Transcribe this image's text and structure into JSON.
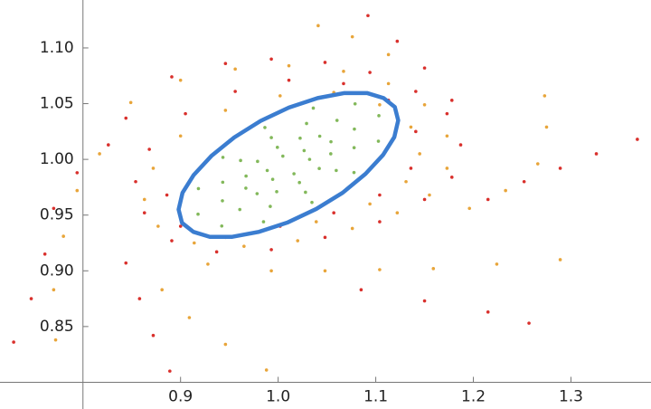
{
  "chart_data": {
    "type": "scatter",
    "xlim": [
      0.715,
      1.382
    ],
    "ylim": [
      0.776,
      1.143
    ],
    "axes_origin": [
      0.8,
      0.8
    ],
    "xticks": [
      {
        "value": 0.9,
        "label": "0.9"
      },
      {
        "value": 1.0,
        "label": "1.0"
      },
      {
        "value": 1.1,
        "label": "1.1"
      },
      {
        "value": 1.2,
        "label": "1.2"
      },
      {
        "value": 1.3,
        "label": "1.3"
      }
    ],
    "yticks": [
      {
        "value": 0.9,
        "label": "0.90"
      },
      0.85,
      0.95,
      {
        "value": 1.0,
        "label": "1.00"
      },
      1.05,
      {
        "value": 1.1,
        "label": "1.10"
      }
    ],
    "series": [
      {
        "color": "#82b85a",
        "style": "points",
        "x": [
          1.1027,
          1.1032,
          1.0788,
          1.036,
          0.9864,
          0.9434,
          0.9183,
          0.9179,
          0.9422,
          0.985,
          1.0346,
          1.0777,
          1.0778,
          1.0781,
          1.0603,
          1.0291,
          0.993,
          0.9615,
          0.9432,
          0.9429,
          0.9607,
          0.9919,
          1.028,
          1.0595,
          1.0539,
          1.0541,
          1.0426,
          1.0225,
          0.9992,
          0.9789,
          0.9671,
          0.9669,
          0.9784,
          0.9985,
          1.0218,
          1.0421,
          1.0322,
          1.0266,
          1.0048,
          0.9888,
          0.9944,
          1.0162
        ],
        "y": [
          1.0163,
          1.0392,
          1.0498,
          1.046,
          1.0286,
          1.0018,
          0.9738,
          0.9508,
          0.9402,
          0.944,
          0.9614,
          0.9882,
          1.0105,
          1.0272,
          1.035,
          1.0322,
          1.0195,
          0.999,
          0.9795,
          0.9628,
          0.955,
          0.9578,
          0.9705,
          0.99,
          1.005,
          1.0158,
          1.0208,
          1.019,
          1.0108,
          0.9982,
          0.985,
          0.9742,
          0.9692,
          0.971,
          0.9792,
          0.9918,
          1.0,
          1.0079,
          1.0029,
          0.99,
          0.9821,
          0.9871
        ]
      },
      {
        "color": "#e8a53a",
        "style": "points",
        "x": [
          0.849,
          0.9,
          0.956,
          1.011,
          1.067,
          1.113,
          1.15,
          1.173,
          1.173,
          1.155,
          1.122,
          1.076,
          1.02,
          0.965,
          0.914,
          0.877,
          0.863,
          0.872,
          0.9,
          0.946,
          1.002,
          1.057,
          1.104,
          1.136,
          1.145,
          1.131,
          1.094,
          1.039,
          1.196,
          1.233,
          1.266,
          1.275,
          1.273,
          0.928,
          0.993,
          1.048,
          1.104,
          1.159,
          1.224,
          1.289,
          0.881,
          0.909,
          0.946,
          0.988,
          0.817,
          0.794,
          0.78,
          0.77,
          0.772,
          1.041,
          1.076,
          1.113
        ],
        "y": [
          1.051,
          1.071,
          1.081,
          1.084,
          1.079,
          1.068,
          1.049,
          1.021,
          0.992,
          0.968,
          0.952,
          0.938,
          0.927,
          0.922,
          0.925,
          0.94,
          0.964,
          0.992,
          1.021,
          1.044,
          1.057,
          1.06,
          1.049,
          1.029,
          1.005,
          0.98,
          0.96,
          0.944,
          0.956,
          0.972,
          0.996,
          1.029,
          1.057,
          0.906,
          0.9,
          0.9,
          0.901,
          0.902,
          0.906,
          0.91,
          0.883,
          0.858,
          0.834,
          0.811,
          1.005,
          0.972,
          0.931,
          0.883,
          0.838,
          1.12,
          1.11,
          1.094
        ]
      },
      {
        "color": "#d9302c",
        "style": "points",
        "x": [
          0.844,
          0.891,
          0.946,
          0.993,
          1.048,
          1.094,
          1.141,
          1.173,
          1.187,
          1.178,
          1.15,
          1.104,
          1.048,
          0.993,
          0.937,
          0.891,
          0.863,
          0.854,
          0.868,
          0.905,
          0.956,
          1.011,
          1.067,
          1.113,
          1.141,
          1.136,
          1.104,
          1.057,
          1.002,
          0.946,
          0.9,
          0.886,
          1.092,
          1.122,
          1.15,
          1.178,
          1.215,
          1.252,
          1.289,
          1.326,
          1.368,
          1.085,
          1.15,
          1.215,
          1.257,
          0.844,
          0.858,
          0.872,
          0.889,
          0.729,
          0.747,
          0.761,
          0.77,
          0.794,
          0.826
        ],
        "y": [
          1.037,
          1.074,
          1.086,
          1.09,
          1.087,
          1.078,
          1.061,
          1.041,
          1.013,
          0.984,
          0.964,
          0.944,
          0.93,
          0.919,
          0.917,
          0.927,
          0.952,
          0.98,
          1.009,
          1.041,
          1.061,
          1.071,
          1.068,
          1.053,
          1.025,
          0.992,
          0.968,
          0.952,
          0.94,
          0.93,
          0.94,
          0.968,
          1.129,
          1.106,
          1.082,
          1.053,
          0.964,
          0.98,
          0.992,
          1.005,
          1.018,
          0.883,
          0.873,
          0.863,
          0.853,
          0.907,
          0.875,
          0.842,
          0.81,
          0.836,
          0.875,
          0.915,
          0.956,
          0.988,
          1.013
        ]
      },
      {
        "color": "#3b7dd0",
        "style": "line",
        "x": [
          1.119,
          1.123,
          1.1195,
          1.108,
          1.091,
          1.068,
          1.0405,
          1.011,
          0.982,
          0.955,
          0.9315,
          0.9135,
          0.902,
          0.898,
          0.9015,
          0.913,
          0.93,
          0.953,
          0.9805,
          1.01,
          1.039,
          1.066,
          1.0895,
          1.1075
        ],
        "y": [
          1.02,
          1.035,
          1.047,
          1.055,
          1.0595,
          1.0595,
          1.055,
          1.0465,
          1.0345,
          1.0197,
          1.003,
          0.986,
          0.97,
          0.955,
          0.943,
          0.935,
          0.9305,
          0.9305,
          0.935,
          0.9435,
          0.9555,
          0.97,
          0.987,
          1.004
        ]
      }
    ]
  }
}
